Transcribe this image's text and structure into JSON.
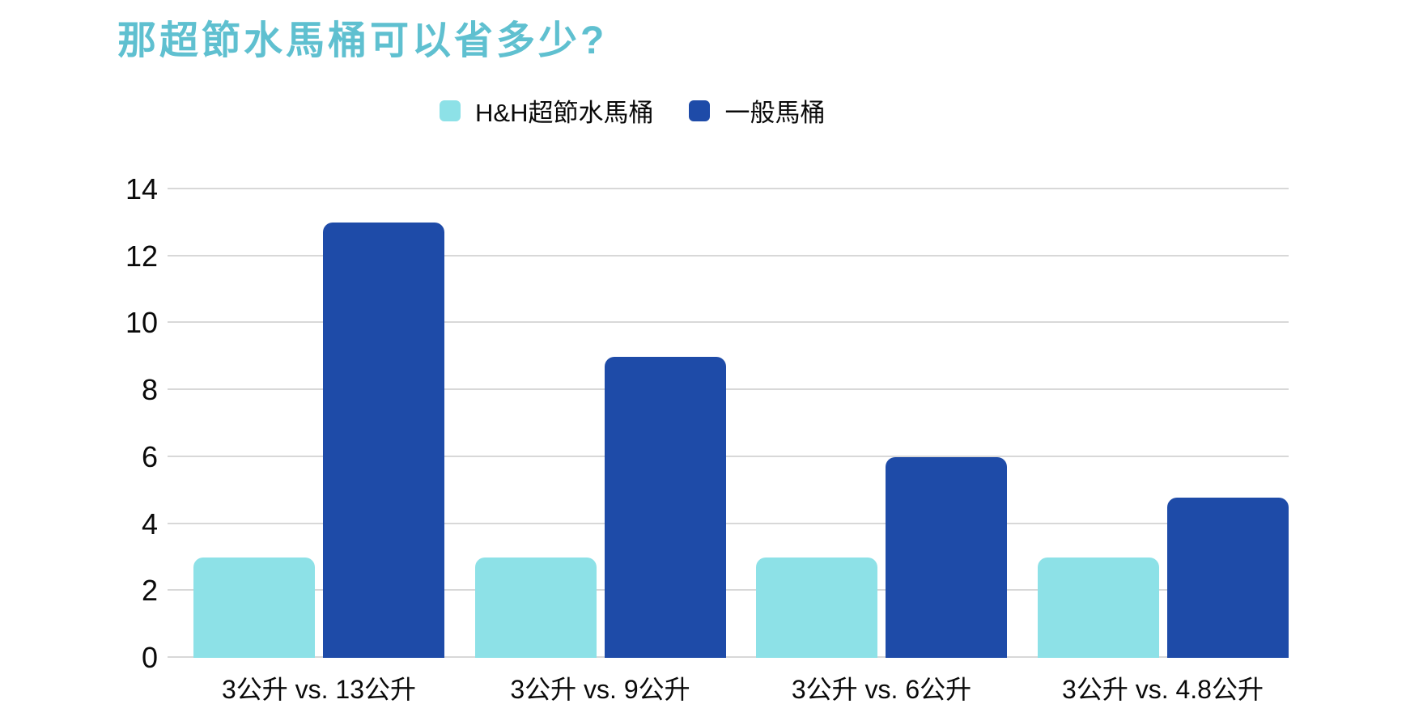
{
  "chart_data": {
    "type": "bar",
    "title": "那超節水馬桶可以省多少?",
    "categories": [
      "3公升 vs. 13公升",
      "3公升 vs. 9公升",
      "3公升 vs. 6公升",
      "3公升 vs. 4.8公升"
    ],
    "series": [
      {
        "name": "H&H超節水馬桶",
        "color": "#8DE1E7",
        "values": [
          3,
          3,
          3,
          3
        ]
      },
      {
        "name": "一般馬桶",
        "color": "#1E4BA8",
        "values": [
          13,
          9,
          6,
          4.8
        ]
      }
    ],
    "ylim": [
      0,
      14
    ],
    "yticks": [
      0,
      2,
      4,
      6,
      8,
      10,
      12,
      14
    ],
    "grid": true,
    "legend_position": "top",
    "xlabel": "",
    "ylabel": ""
  },
  "colors": {
    "title": "#5FC0D0",
    "series_hh": "#8DE1E7",
    "series_regular": "#1E4BA8",
    "gridline": "#D8D8D8",
    "text": "#0A0A0A",
    "background": "#FFFFFF"
  }
}
